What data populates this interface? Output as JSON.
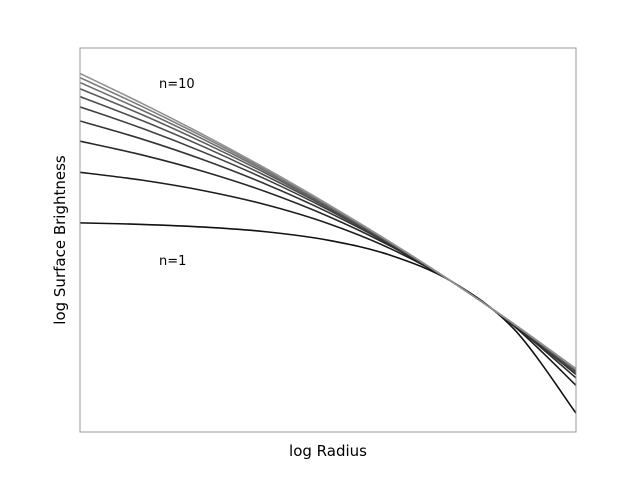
{
  "chart_data": {
    "type": "line",
    "xlabel": "log Radius",
    "ylabel": "log Surface Brightness",
    "xlim": [
      -1.5,
      0.5
    ],
    "ylim": [
      -1.8,
      2.8
    ],
    "x": [
      -1.5,
      -1.25,
      -1.0,
      -0.75,
      -0.5,
      -0.25,
      0,
      0.25,
      0.5
    ],
    "annotations": [
      {
        "text": "n=10"
      },
      {
        "text": "n=1"
      }
    ],
    "series": [
      {
        "color": "#111111",
        "values": [
          0.705,
          0.687,
          0.655,
          0.599,
          0.498,
          0.319,
          0,
          -0.567,
          -1.574
        ]
      },
      {
        "color": "#1c1c1c",
        "values": [
          1.311,
          1.217,
          1.09,
          0.922,
          0.698,
          0.399,
          0,
          -0.532,
          -1.241
        ]
      },
      {
        "color": "#282828",
        "values": [
          1.684,
          1.519,
          1.319,
          1.078,
          0.785,
          0.43,
          0,
          -0.521,
          -1.152
        ]
      },
      {
        "color": "#343434",
        "values": [
          1.926,
          1.709,
          1.458,
          1.168,
          0.833,
          0.446,
          0,
          -0.516,
          -1.111
        ]
      },
      {
        "color": "#404040",
        "values": [
          2.095,
          1.838,
          1.549,
          1.227,
          0.864,
          0.456,
          0,
          -0.512,
          -1.087
        ]
      },
      {
        "color": "#4e4e4e",
        "values": [
          2.218,
          1.931,
          1.615,
          1.267,
          0.885,
          0.463,
          0,
          -0.51,
          -1.072
        ]
      },
      {
        "color": "#5c5c5c",
        "values": [
          2.312,
          2.002,
          1.664,
          1.298,
          0.9,
          0.468,
          0,
          -0.509,
          -1.061
        ]
      },
      {
        "color": "#6c6c6c",
        "values": [
          2.386,
          2.056,
          1.702,
          1.321,
          0.912,
          0.473,
          0,
          -0.508,
          -1.053
        ]
      },
      {
        "color": "#7e7e7e",
        "values": [
          2.445,
          2.1,
          1.732,
          1.34,
          0.922,
          0.476,
          0,
          -0.507,
          -1.047
        ]
      },
      {
        "color": "#919191",
        "values": [
          2.495,
          2.136,
          1.757,
          1.355,
          0.928,
          0.477,
          0,
          -0.507,
          -1.042
        ]
      }
    ]
  }
}
